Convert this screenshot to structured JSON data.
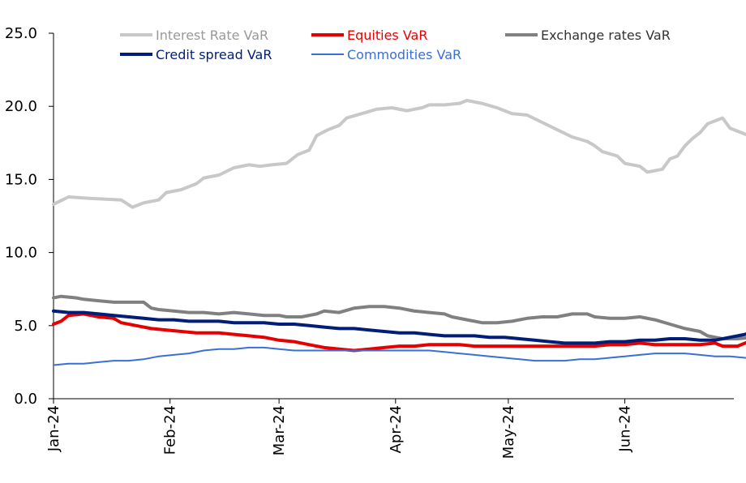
{
  "chart_data": {
    "type": "line",
    "title": "",
    "xlabel": "",
    "ylabel": "",
    "ylim": [
      0,
      25
    ],
    "y_ticks": [
      "0.0",
      "5.0",
      "10.0",
      "15.0",
      "20.0",
      "25.0"
    ],
    "x_ticks": [
      "Jan-24",
      "Feb-24",
      "Mar-24",
      "Apr-24",
      "May-24",
      "Jun-24"
    ],
    "x_range_days": [
      0,
      181
    ],
    "grid": false,
    "legend_position": "top",
    "series": [
      {
        "name": "Interest Rate VaR",
        "color": "#c8c8c8",
        "width": 4,
        "points": [
          [
            0,
            13.3
          ],
          [
            4,
            13.8
          ],
          [
            10,
            13.7
          ],
          [
            18,
            13.6
          ],
          [
            21,
            13.1
          ],
          [
            24,
            13.4
          ],
          [
            28,
            13.6
          ],
          [
            30,
            14.1
          ],
          [
            34,
            14.3
          ],
          [
            38,
            14.7
          ],
          [
            40,
            15.1
          ],
          [
            44,
            15.3
          ],
          [
            48,
            15.8
          ],
          [
            52,
            16.0
          ],
          [
            55,
            15.9
          ],
          [
            58,
            16.0
          ],
          [
            62,
            16.1
          ],
          [
            65,
            16.7
          ],
          [
            68,
            17.0
          ],
          [
            70,
            18.0
          ],
          [
            73,
            18.4
          ],
          [
            76,
            18.7
          ],
          [
            78,
            19.2
          ],
          [
            82,
            19.5
          ],
          [
            86,
            19.8
          ],
          [
            90,
            19.9
          ],
          [
            94,
            19.7
          ],
          [
            98,
            19.9
          ],
          [
            100,
            20.1
          ],
          [
            104,
            20.1
          ],
          [
            108,
            20.2
          ],
          [
            110,
            20.4
          ],
          [
            114,
            20.2
          ],
          [
            118,
            19.9
          ],
          [
            122,
            19.5
          ],
          [
            126,
            19.4
          ],
          [
            130,
            18.9
          ],
          [
            134,
            18.4
          ],
          [
            138,
            17.9
          ],
          [
            142,
            17.6
          ],
          [
            144,
            17.3
          ],
          [
            146,
            16.9
          ],
          [
            150,
            16.6
          ],
          [
            152,
            16.1
          ],
          [
            156,
            15.9
          ],
          [
            158,
            15.5
          ],
          [
            162,
            15.7
          ],
          [
            164,
            16.4
          ],
          [
            166,
            16.6
          ],
          [
            168,
            17.3
          ],
          [
            170,
            17.8
          ],
          [
            172,
            18.2
          ],
          [
            174,
            18.8
          ],
          [
            178,
            19.2
          ],
          [
            180,
            18.5
          ],
          [
            184,
            18.1
          ],
          [
            188,
            17.7
          ],
          [
            190,
            17.5
          ],
          [
            192,
            17.0
          ],
          [
            194,
            16.7
          ]
        ]
      },
      {
        "name": "Equities VaR",
        "color": "#e60000",
        "width": 4,
        "points": [
          [
            0,
            5.1
          ],
          [
            2,
            5.3
          ],
          [
            4,
            5.7
          ],
          [
            8,
            5.8
          ],
          [
            12,
            5.6
          ],
          [
            16,
            5.5
          ],
          [
            18,
            5.2
          ],
          [
            22,
            5.0
          ],
          [
            26,
            4.8
          ],
          [
            30,
            4.7
          ],
          [
            34,
            4.6
          ],
          [
            38,
            4.5
          ],
          [
            44,
            4.5
          ],
          [
            48,
            4.4
          ],
          [
            52,
            4.3
          ],
          [
            56,
            4.2
          ],
          [
            60,
            4.0
          ],
          [
            64,
            3.9
          ],
          [
            68,
            3.7
          ],
          [
            72,
            3.5
          ],
          [
            76,
            3.4
          ],
          [
            80,
            3.3
          ],
          [
            84,
            3.4
          ],
          [
            88,
            3.5
          ],
          [
            92,
            3.6
          ],
          [
            96,
            3.6
          ],
          [
            100,
            3.7
          ],
          [
            104,
            3.7
          ],
          [
            108,
            3.7
          ],
          [
            112,
            3.6
          ],
          [
            116,
            3.6
          ],
          [
            120,
            3.6
          ],
          [
            124,
            3.6
          ],
          [
            128,
            3.6
          ],
          [
            132,
            3.6
          ],
          [
            136,
            3.6
          ],
          [
            140,
            3.6
          ],
          [
            144,
            3.6
          ],
          [
            148,
            3.7
          ],
          [
            152,
            3.7
          ],
          [
            156,
            3.8
          ],
          [
            160,
            3.7
          ],
          [
            164,
            3.7
          ],
          [
            168,
            3.7
          ],
          [
            172,
            3.7
          ],
          [
            176,
            3.8
          ],
          [
            178,
            3.6
          ],
          [
            182,
            3.6
          ],
          [
            184,
            3.8
          ],
          [
            186,
            4.0
          ],
          [
            188,
            4.0
          ],
          [
            190,
            4.0
          ],
          [
            192,
            4.2
          ],
          [
            194,
            4.2
          ]
        ]
      },
      {
        "name": "Exchange rates VaR",
        "color": "#808080",
        "width": 4,
        "points": [
          [
            0,
            6.9
          ],
          [
            2,
            7.0
          ],
          [
            6,
            6.9
          ],
          [
            8,
            6.8
          ],
          [
            12,
            6.7
          ],
          [
            16,
            6.6
          ],
          [
            20,
            6.6
          ],
          [
            24,
            6.6
          ],
          [
            26,
            6.2
          ],
          [
            28,
            6.1
          ],
          [
            32,
            6.0
          ],
          [
            36,
            5.9
          ],
          [
            40,
            5.9
          ],
          [
            44,
            5.8
          ],
          [
            48,
            5.9
          ],
          [
            52,
            5.8
          ],
          [
            56,
            5.7
          ],
          [
            60,
            5.7
          ],
          [
            62,
            5.6
          ],
          [
            66,
            5.6
          ],
          [
            70,
            5.8
          ],
          [
            72,
            6.0
          ],
          [
            76,
            5.9
          ],
          [
            80,
            6.2
          ],
          [
            84,
            6.3
          ],
          [
            88,
            6.3
          ],
          [
            92,
            6.2
          ],
          [
            96,
            6.0
          ],
          [
            100,
            5.9
          ],
          [
            104,
            5.8
          ],
          [
            106,
            5.6
          ],
          [
            110,
            5.4
          ],
          [
            114,
            5.2
          ],
          [
            118,
            5.2
          ],
          [
            122,
            5.3
          ],
          [
            126,
            5.5
          ],
          [
            130,
            5.6
          ],
          [
            134,
            5.6
          ],
          [
            138,
            5.8
          ],
          [
            142,
            5.8
          ],
          [
            144,
            5.6
          ],
          [
            148,
            5.5
          ],
          [
            152,
            5.5
          ],
          [
            156,
            5.6
          ],
          [
            160,
            5.4
          ],
          [
            164,
            5.1
          ],
          [
            168,
            4.8
          ],
          [
            172,
            4.6
          ],
          [
            174,
            4.3
          ],
          [
            178,
            4.1
          ],
          [
            182,
            4.1
          ],
          [
            186,
            4.2
          ],
          [
            190,
            4.5
          ],
          [
            192,
            4.7
          ],
          [
            194,
            5.2
          ]
        ]
      },
      {
        "name": "Credit spread VaR",
        "color": "#001e78",
        "width": 4,
        "points": [
          [
            0,
            6.0
          ],
          [
            4,
            5.9
          ],
          [
            8,
            5.9
          ],
          [
            12,
            5.8
          ],
          [
            16,
            5.7
          ],
          [
            20,
            5.6
          ],
          [
            24,
            5.5
          ],
          [
            28,
            5.4
          ],
          [
            32,
            5.4
          ],
          [
            36,
            5.3
          ],
          [
            40,
            5.3
          ],
          [
            44,
            5.3
          ],
          [
            48,
            5.2
          ],
          [
            52,
            5.2
          ],
          [
            56,
            5.2
          ],
          [
            60,
            5.1
          ],
          [
            64,
            5.1
          ],
          [
            68,
            5.0
          ],
          [
            72,
            4.9
          ],
          [
            76,
            4.8
          ],
          [
            80,
            4.8
          ],
          [
            84,
            4.7
          ],
          [
            88,
            4.6
          ],
          [
            92,
            4.5
          ],
          [
            96,
            4.5
          ],
          [
            100,
            4.4
          ],
          [
            104,
            4.3
          ],
          [
            108,
            4.3
          ],
          [
            112,
            4.3
          ],
          [
            116,
            4.2
          ],
          [
            120,
            4.2
          ],
          [
            124,
            4.1
          ],
          [
            128,
            4.0
          ],
          [
            132,
            3.9
          ],
          [
            136,
            3.8
          ],
          [
            140,
            3.8
          ],
          [
            144,
            3.8
          ],
          [
            148,
            3.9
          ],
          [
            152,
            3.9
          ],
          [
            156,
            4.0
          ],
          [
            160,
            4.0
          ],
          [
            164,
            4.1
          ],
          [
            168,
            4.1
          ],
          [
            172,
            4.0
          ],
          [
            176,
            4.0
          ],
          [
            180,
            4.2
          ],
          [
            184,
            4.4
          ],
          [
            186,
            4.6
          ],
          [
            188,
            4.8
          ],
          [
            190,
            4.9
          ],
          [
            192,
            4.9
          ],
          [
            194,
            4.8
          ]
        ]
      },
      {
        "name": "Commodities VaR",
        "color": "#3a6fd8",
        "width": 2,
        "points": [
          [
            0,
            2.3
          ],
          [
            4,
            2.4
          ],
          [
            8,
            2.4
          ],
          [
            12,
            2.5
          ],
          [
            16,
            2.6
          ],
          [
            20,
            2.6
          ],
          [
            24,
            2.7
          ],
          [
            28,
            2.9
          ],
          [
            32,
            3.0
          ],
          [
            36,
            3.1
          ],
          [
            40,
            3.3
          ],
          [
            44,
            3.4
          ],
          [
            48,
            3.4
          ],
          [
            52,
            3.5
          ],
          [
            56,
            3.5
          ],
          [
            60,
            3.4
          ],
          [
            64,
            3.3
          ],
          [
            68,
            3.3
          ],
          [
            72,
            3.3
          ],
          [
            76,
            3.3
          ],
          [
            80,
            3.3
          ],
          [
            84,
            3.3
          ],
          [
            88,
            3.3
          ],
          [
            92,
            3.3
          ],
          [
            96,
            3.3
          ],
          [
            100,
            3.3
          ],
          [
            104,
            3.2
          ],
          [
            108,
            3.1
          ],
          [
            112,
            3.0
          ],
          [
            116,
            2.9
          ],
          [
            120,
            2.8
          ],
          [
            124,
            2.7
          ],
          [
            128,
            2.6
          ],
          [
            132,
            2.6
          ],
          [
            136,
            2.6
          ],
          [
            140,
            2.7
          ],
          [
            144,
            2.7
          ],
          [
            148,
            2.8
          ],
          [
            152,
            2.9
          ],
          [
            156,
            3.0
          ],
          [
            160,
            3.1
          ],
          [
            164,
            3.1
          ],
          [
            168,
            3.1
          ],
          [
            172,
            3.0
          ],
          [
            176,
            2.9
          ],
          [
            180,
            2.9
          ],
          [
            184,
            2.8
          ],
          [
            188,
            2.7
          ],
          [
            190,
            2.6
          ],
          [
            194,
            2.6
          ]
        ]
      }
    ]
  }
}
